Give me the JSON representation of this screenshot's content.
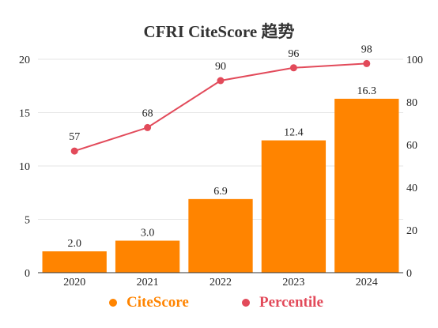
{
  "title": "CFRI CiteScore 趋势",
  "colors": {
    "bar": "#FF8400",
    "line": "#E24A5A",
    "grid": "#E6E6E6",
    "axis": "#333333"
  },
  "chart_data": {
    "type": "bar",
    "title": "CFRI CiteScore 趋势",
    "categories": [
      "2020",
      "2021",
      "2022",
      "2023",
      "2024"
    ],
    "series": [
      {
        "name": "CiteScore",
        "type": "bar",
        "axis": "left",
        "values": [
          2.0,
          3.0,
          6.9,
          12.4,
          16.3
        ],
        "labels": [
          "2.0",
          "3.0",
          "6.9",
          "12.4",
          "16.3"
        ]
      },
      {
        "name": "Percentile",
        "type": "line",
        "axis": "right",
        "values": [
          57,
          68,
          90,
          96,
          98
        ],
        "labels": [
          "57",
          "68",
          "90",
          "96",
          "98"
        ]
      }
    ],
    "y_left": {
      "min": 0,
      "max": 20,
      "ticks": [
        "0",
        "5",
        "10",
        "15",
        "20"
      ]
    },
    "y_right": {
      "min": 0,
      "max": 100,
      "ticks": [
        "0",
        "20",
        "40",
        "60",
        "80",
        "100"
      ]
    },
    "grid": true,
    "legend_position": "bottom"
  },
  "legend": [
    {
      "label": "CiteScore",
      "color": "#FF8400"
    },
    {
      "label": "Percentile",
      "color": "#E24A5A"
    }
  ]
}
